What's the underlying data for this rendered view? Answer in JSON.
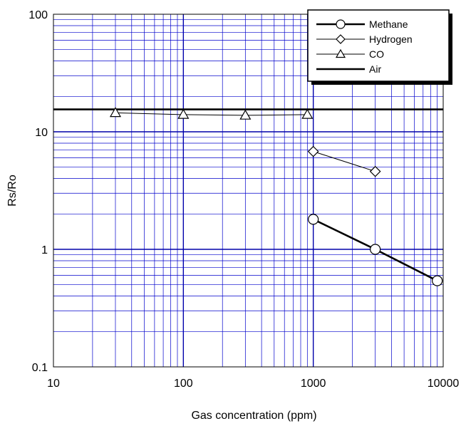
{
  "chart_data": {
    "type": "line",
    "title": "",
    "xlabel": "Gas concentration (ppm)",
    "ylabel": "Rs/Ro",
    "xscale": "log",
    "yscale": "log",
    "xlim": [
      10,
      10000
    ],
    "ylim": [
      0.1,
      100
    ],
    "grid": true,
    "legend_position": "top-right",
    "x_ticks": [
      "10",
      "100",
      "1000",
      "10000"
    ],
    "y_ticks": [
      "0.1",
      "1",
      "10",
      "100"
    ],
    "series": [
      {
        "name": "Methane",
        "marker": "circle",
        "line_width": "thick",
        "x": [
          1000,
          3000,
          9000
        ],
        "y": [
          1.8,
          1.0,
          0.54
        ]
      },
      {
        "name": "Hydrogen",
        "marker": "diamond",
        "line_width": "thin",
        "x": [
          1000,
          3000
        ],
        "y": [
          6.8,
          4.6
        ]
      },
      {
        "name": "CO",
        "marker": "triangle",
        "line_width": "thin",
        "x": [
          30,
          100,
          300,
          900
        ],
        "y": [
          14.5,
          14.0,
          13.8,
          14.0
        ]
      },
      {
        "name": "Air",
        "marker": "none",
        "line_width": "thick",
        "x": [
          10,
          10000
        ],
        "y": [
          15.5,
          15.5
        ]
      }
    ],
    "colors": {
      "grid": "#0000cc",
      "major_grid": "#0000aa",
      "line": "#000000",
      "background": "#ffffff"
    }
  }
}
